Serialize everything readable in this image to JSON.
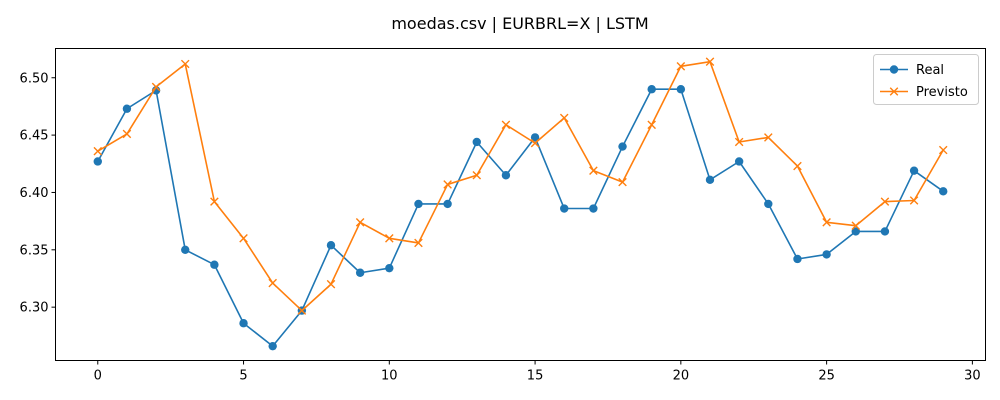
{
  "chart_data": {
    "type": "line",
    "title": "moedas.csv | EURBRL=X | LSTM",
    "xlabel": "",
    "ylabel": "",
    "xlim": [
      -1.45,
      30.45
    ],
    "ylim": [
      6.2535,
      6.5255
    ],
    "x_ticks": [
      0,
      5,
      10,
      15,
      20,
      25,
      30
    ],
    "y_ticks": [
      6.3,
      6.35,
      6.4,
      6.45,
      6.5
    ],
    "x_tick_labels": [
      "0",
      "5",
      "10",
      "15",
      "20",
      "25",
      "30"
    ],
    "y_tick_labels": [
      "6.30",
      "6.35",
      "6.40",
      "6.45",
      "6.50"
    ],
    "grid": false,
    "legend_position": "top-right",
    "x": [
      0,
      1,
      2,
      3,
      4,
      5,
      6,
      7,
      8,
      9,
      10,
      11,
      12,
      13,
      14,
      15,
      16,
      17,
      18,
      19,
      20,
      21,
      22,
      23,
      24,
      25,
      26,
      27,
      28,
      29
    ],
    "series": [
      {
        "name": "Real",
        "color": "#1f77b4",
        "marker": "circle",
        "values": [
          6.427,
          6.473,
          6.489,
          6.35,
          6.337,
          6.286,
          6.266,
          6.297,
          6.354,
          6.33,
          6.334,
          6.39,
          6.39,
          6.444,
          6.415,
          6.448,
          6.386,
          6.386,
          6.44,
          6.49,
          6.49,
          6.411,
          6.427,
          6.39,
          6.342,
          6.346,
          6.366,
          6.366,
          6.419,
          6.401
        ]
      },
      {
        "name": "Previsto",
        "color": "#ff7f0e",
        "marker": "x",
        "values": [
          6.436,
          6.451,
          6.492,
          6.512,
          6.392,
          6.36,
          6.321,
          6.297,
          6.32,
          6.374,
          6.36,
          6.356,
          6.407,
          6.415,
          6.459,
          6.443,
          6.465,
          6.419,
          6.409,
          6.459,
          6.51,
          6.514,
          6.444,
          6.448,
          6.423,
          6.374,
          6.371,
          6.392,
          6.393,
          6.437
        ]
      }
    ]
  }
}
